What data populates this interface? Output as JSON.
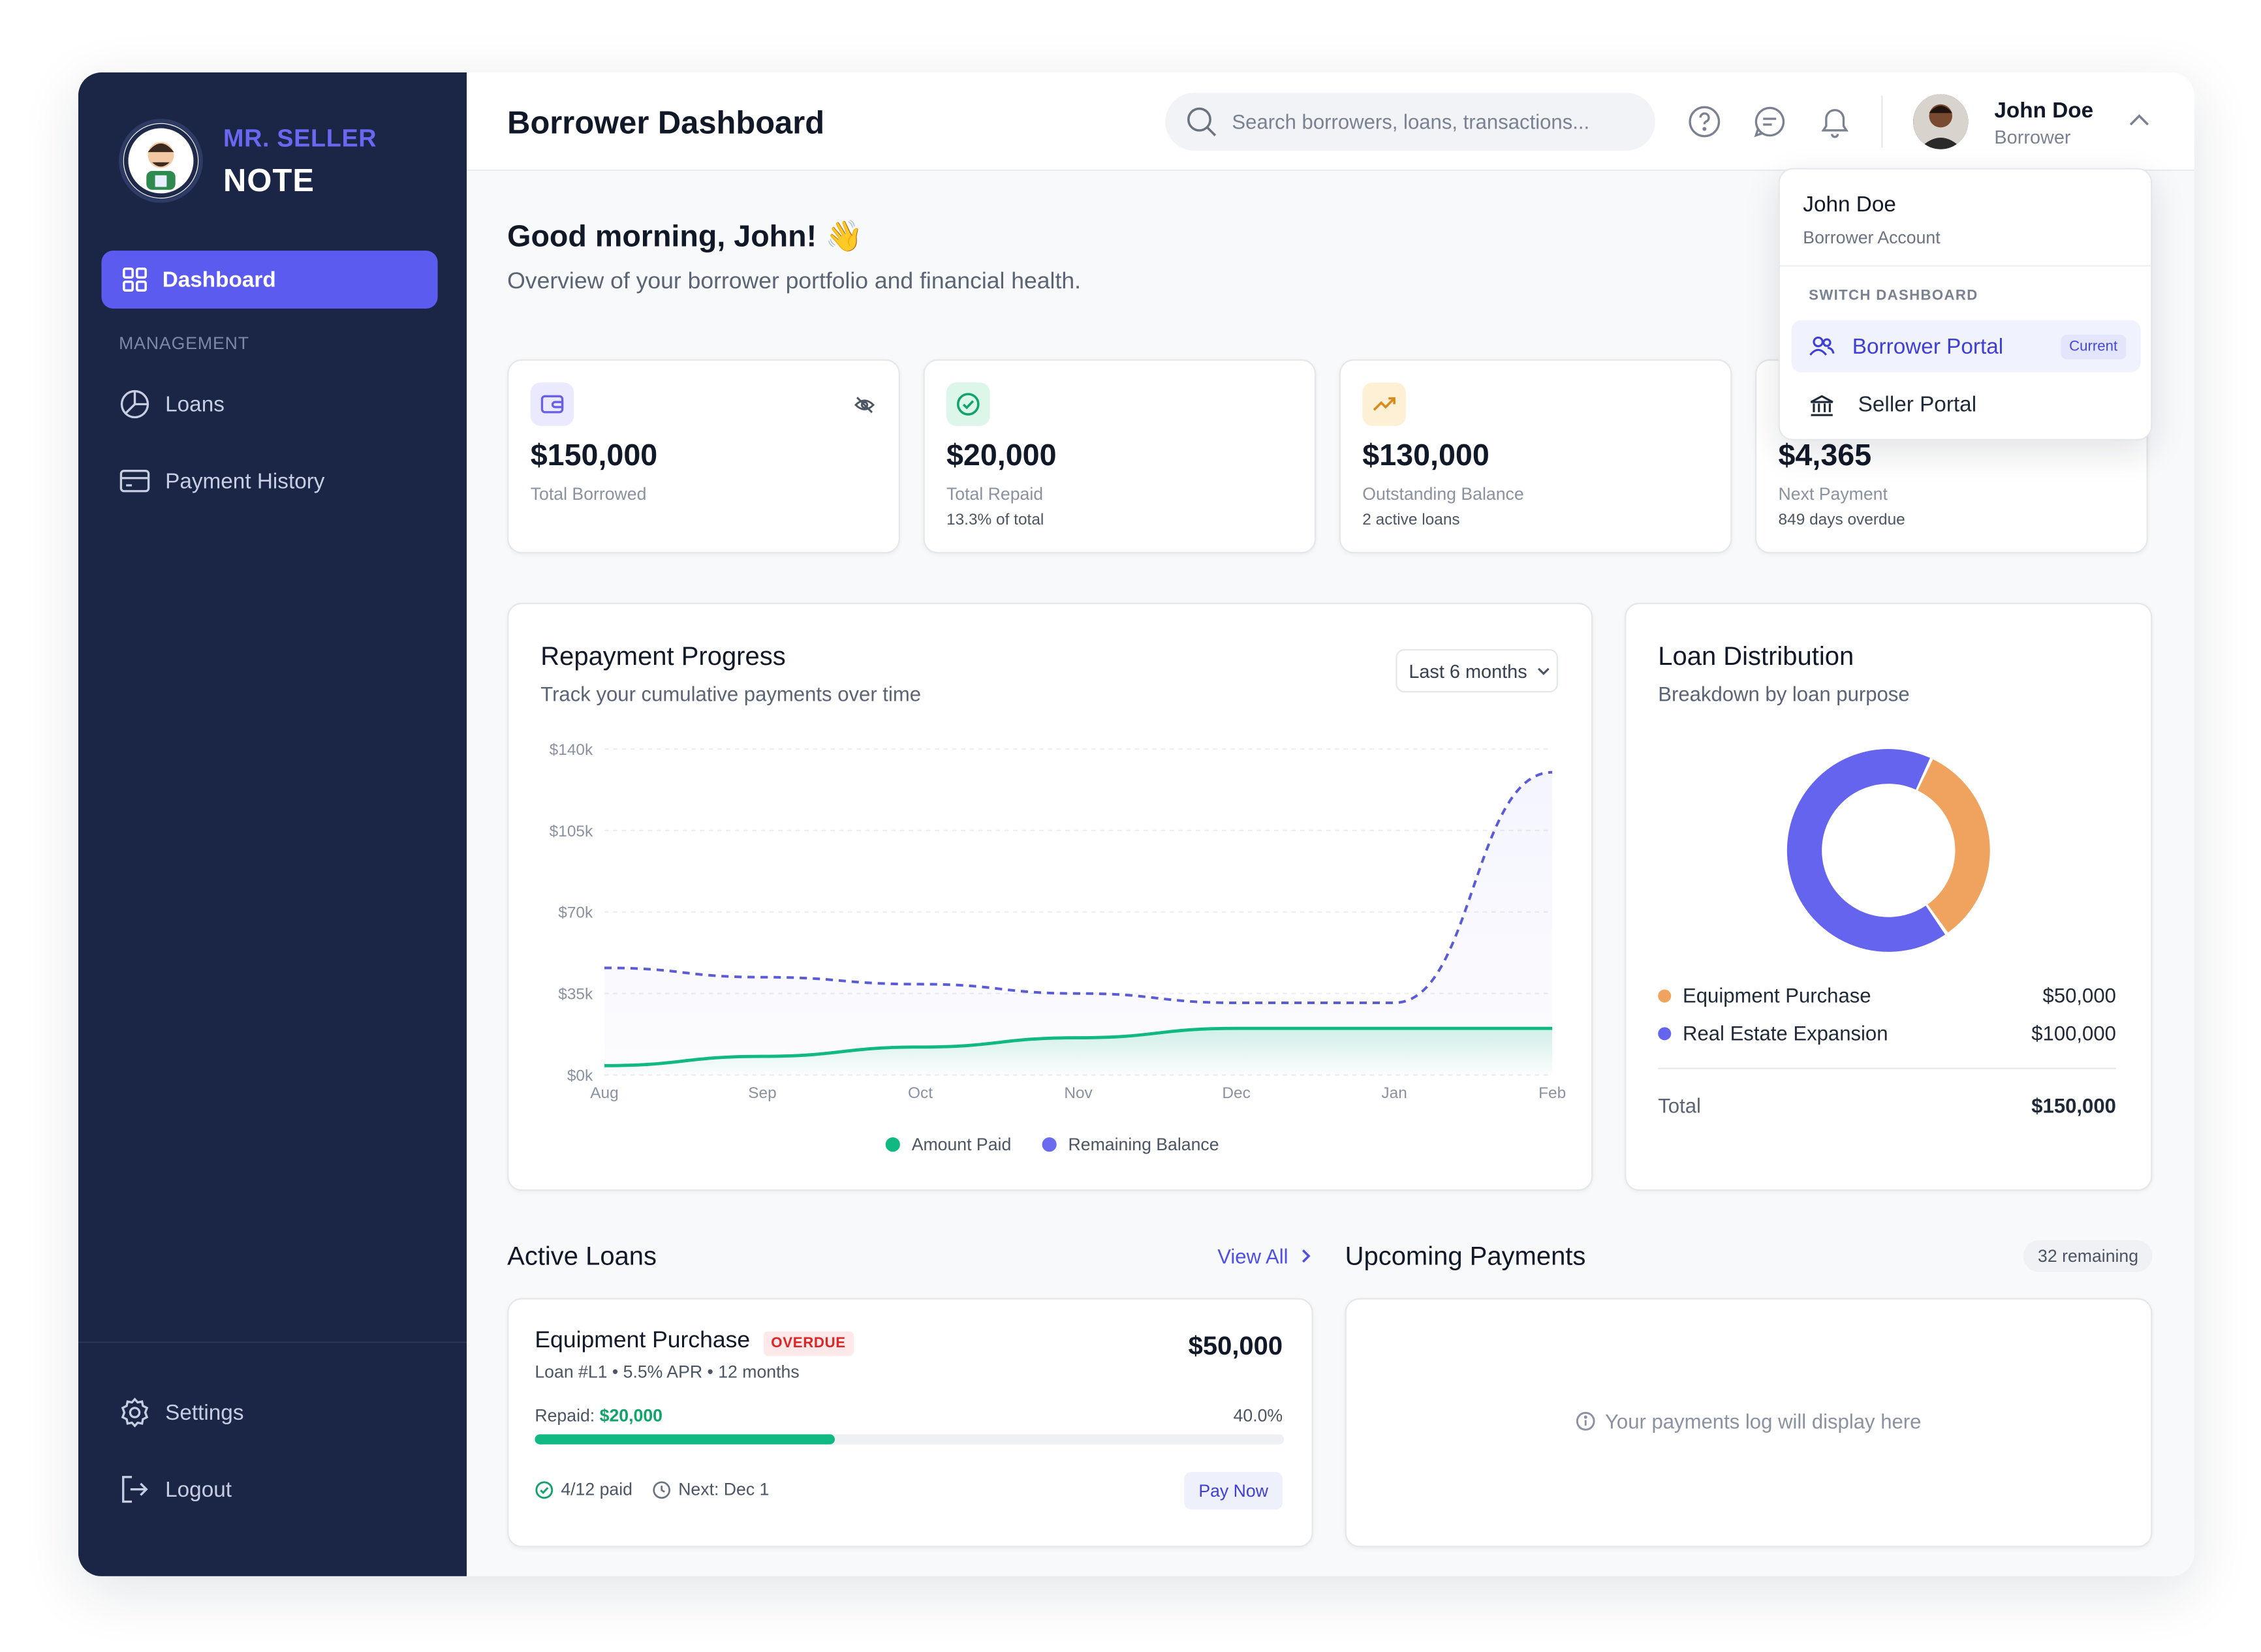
{
  "brand": {
    "line1": "MR. SELLER",
    "line2": "NOTE"
  },
  "sidebar": {
    "active_item": "Dashboard",
    "section_label": "MANAGEMENT",
    "items": [
      {
        "label": "Loans"
      },
      {
        "label": "Payment History"
      }
    ],
    "bottom_items": [
      {
        "label": "Settings"
      },
      {
        "label": "Logout"
      }
    ]
  },
  "header": {
    "title": "Borrower Dashboard",
    "search_placeholder": "Search borrowers, loans, transactions...",
    "user_name": "John Doe",
    "user_role": "Borrower"
  },
  "dropdown": {
    "name": "John Doe",
    "account": "Borrower Account",
    "section": "SWITCH DASHBOARD",
    "active": "Borrower Portal",
    "active_badge": "Current",
    "other": "Seller Portal"
  },
  "main": {
    "greeting": "Good morning, John! 👋",
    "subtitle": "Overview of your borrower portfolio and financial health."
  },
  "stats": [
    {
      "value": "$150,000",
      "label": "Total Borrowed",
      "sub": ""
    },
    {
      "value": "$20,000",
      "label": "Total Repaid",
      "sub": "13.3% of total"
    },
    {
      "value": "$130,000",
      "label": "Outstanding Balance",
      "sub": "2 active loans"
    },
    {
      "value": "$4,365",
      "label": "Next Payment",
      "sub": "849 days overdue"
    }
  ],
  "repayment": {
    "title": "Repayment Progress",
    "subtitle": "Track your cumulative payments over time",
    "range": "Last 6 months"
  },
  "chart_data": {
    "type": "line",
    "categories": [
      "Aug",
      "Sep",
      "Oct",
      "Nov",
      "Dec",
      "Jan",
      "Feb"
    ],
    "y_ticks": [
      "$0k",
      "$35k",
      "$70k",
      "$105k",
      "$140k"
    ],
    "ylim": [
      0,
      140000
    ],
    "series": [
      {
        "name": "Amount Paid",
        "color": "#10b981",
        "values": [
          4000,
          8000,
          12000,
          16000,
          20000,
          20000,
          20000
        ]
      },
      {
        "name": "Remaining Balance",
        "color": "#5b5bd6",
        "values": [
          46000,
          42000,
          39000,
          35000,
          31000,
          31000,
          130000
        ]
      }
    ]
  },
  "distribution": {
    "title": "Loan Distribution",
    "subtitle": "Breakdown by loan purpose",
    "items": [
      {
        "label": "Equipment Purchase",
        "value": "$50,000",
        "amount": 50000,
        "color": "#f0a35e"
      },
      {
        "label": "Real Estate Expansion",
        "value": "$100,000",
        "amount": 100000,
        "color": "#6564ee"
      }
    ],
    "total_label": "Total",
    "total_value": "$150,000"
  },
  "active_loans": {
    "title": "Active Loans",
    "view_all": "View All",
    "loan": {
      "name": "Equipment Purchase",
      "status": "OVERDUE",
      "meta": "Loan #L1 • 5.5% APR • 12 months",
      "amount": "$50,000",
      "repaid_label": "Repaid:",
      "repaid_value": "$20,000",
      "percent": "40.0%",
      "progress": 0.4,
      "paid": "4/12 paid",
      "next": "Next: Dec 1",
      "pay_button": "Pay Now"
    }
  },
  "upcoming": {
    "title": "Upcoming Payments",
    "remaining": "32 remaining",
    "empty": "Your payments log will display here"
  }
}
